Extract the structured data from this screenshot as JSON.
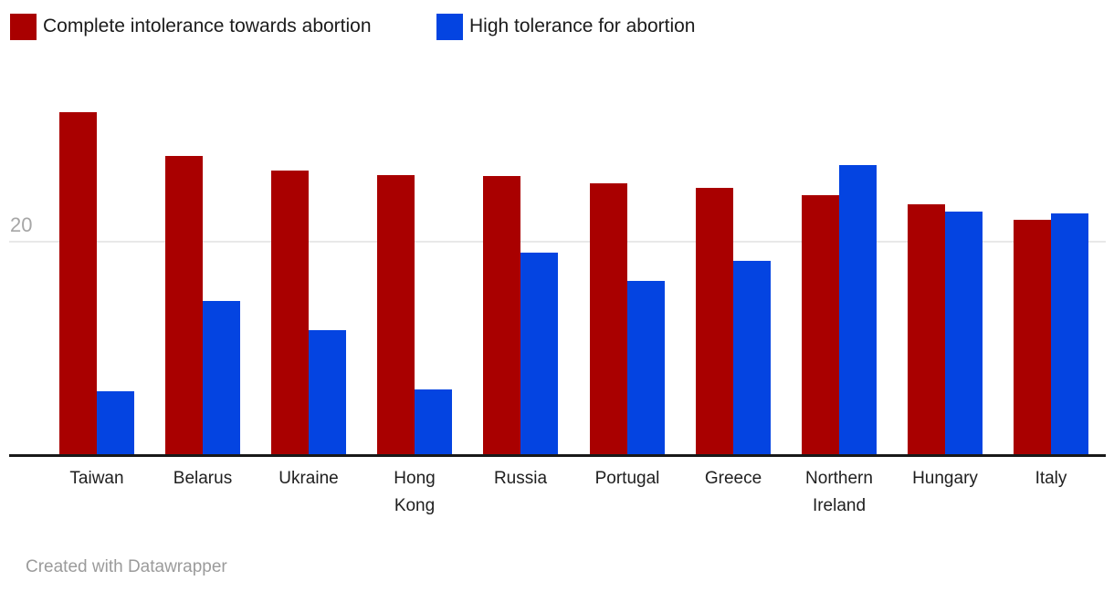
{
  "legend": {
    "items": [
      {
        "label": "Complete intolerance towards abortion",
        "color": "#a90000"
      },
      {
        "label": "High tolerance for abortion",
        "color": "#0444e1"
      }
    ]
  },
  "axis": {
    "y_tick": "20"
  },
  "footer": {
    "text": "Created with Datawrapper"
  },
  "colors": {
    "bar_red": "#a90000",
    "bar_blue": "#0444e1",
    "axis_line": "#191919",
    "gridline": "#e8e8e8",
    "tick_label": "#a6a6a6",
    "category_label": "#202020",
    "footer_text": "#9b9b9b"
  },
  "chart_data": {
    "type": "bar",
    "title": "",
    "categories": [
      "Taiwan",
      "Belarus",
      "Ukraine",
      "Hong Kong",
      "Russia",
      "Portugal",
      "Greece",
      "Northern Ireland",
      "Hungary",
      "Italy"
    ],
    "series": [
      {
        "name": "Complete intolerance towards abortion",
        "color": "#a90000",
        "values": [
          32.2,
          28.1,
          26.7,
          26.3,
          26.2,
          25.5,
          25.1,
          24.4,
          23.5,
          22.1
        ]
      },
      {
        "name": "High tolerance for abortion",
        "color": "#0444e1",
        "values": [
          5.9,
          14.4,
          11.7,
          6.1,
          19.0,
          16.3,
          18.2,
          27.2,
          22.8,
          22.7
        ]
      }
    ],
    "xlabel": "",
    "ylabel": "",
    "ylim": [
      0,
      34
    ],
    "gridlines": [
      20
    ],
    "grid": true,
    "legend_position": "top-left"
  }
}
